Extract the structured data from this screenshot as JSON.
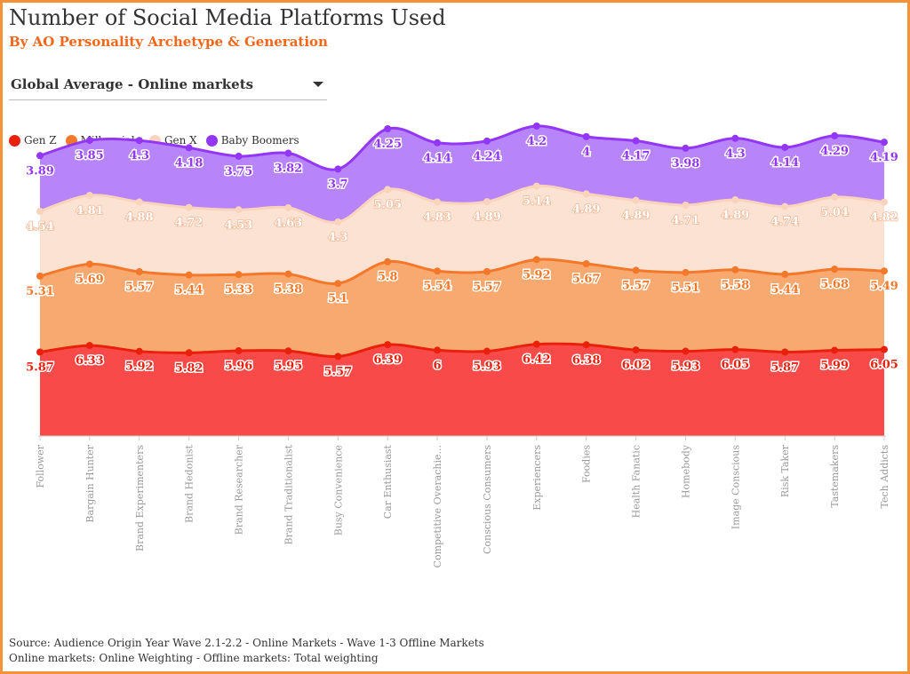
{
  "header": {
    "title": "Number of Social Media Platforms Used",
    "subtitle": "By AO Personality Archetype & Generation"
  },
  "filter": {
    "selected": "Global Average - Online markets"
  },
  "icons": {
    "dropdown": "chevron-down-icon"
  },
  "colors": {
    "border": "#f4923a",
    "subtitle": "#f4661b"
  },
  "chart_data": {
    "type": "area",
    "stacked": true,
    "grid": false,
    "legend_position": "top-left",
    "xlabel": "",
    "ylabel": "",
    "categories": [
      "Follower",
      "Bargain Hunter",
      "Brand Experimenters",
      "Brand Hedonist",
      "Brand Researcher",
      "Brand Traditionalist",
      "Busy Convenience",
      "Car Enthusiast",
      "Competitive Overachie...",
      "Conscious Consumers",
      "Experiencers",
      "Foodies",
      "Health Fanatic",
      "Homebody",
      "Image Conscious",
      "Risk Taker",
      "Tastemakers",
      "Tech Addicts"
    ],
    "series": [
      {
        "name": "Gen Z",
        "line_color": "#e8200c",
        "fill_color": "#f94a4a",
        "values": [
          5.87,
          6.33,
          5.92,
          5.82,
          5.96,
          5.95,
          5.57,
          6.39,
          6,
          5.93,
          6.42,
          6.38,
          6.02,
          5.93,
          6.05,
          5.87,
          5.99,
          6.05
        ]
      },
      {
        "name": "Millennials",
        "line_color": "#f4782a",
        "fill_color": "#f8a970",
        "values": [
          5.31,
          5.69,
          5.57,
          5.44,
          5.33,
          5.38,
          5.1,
          5.8,
          5.54,
          5.57,
          5.92,
          5.67,
          5.57,
          5.51,
          5.58,
          5.44,
          5.68,
          5.49
        ]
      },
      {
        "name": "Gen X",
        "line_color": "#f9d3bb",
        "fill_color": "#fce2d2",
        "values": [
          4.54,
          4.81,
          4.88,
          4.72,
          4.53,
          4.63,
          4.3,
          5.05,
          4.83,
          4.89,
          5.14,
          4.89,
          4.89,
          4.71,
          4.89,
          4.74,
          5.04,
          4.82
        ]
      },
      {
        "name": "Baby Boomers",
        "line_color": "#9436f5",
        "fill_color": "#b784fa",
        "values": [
          3.89,
          3.85,
          4.3,
          4.18,
          3.75,
          3.82,
          3.7,
          4.25,
          4.14,
          4.24,
          4.2,
          4,
          4.17,
          3.98,
          4.3,
          4.14,
          4.29,
          4.19
        ]
      }
    ]
  },
  "source": {
    "line1": "Source: Audience Origin Year Wave 2.1-2.2 - Online Markets - Wave 1-3 Offline Markets",
    "line2": "Online markets: Online Weighting - Offline markets: Total weighting"
  }
}
